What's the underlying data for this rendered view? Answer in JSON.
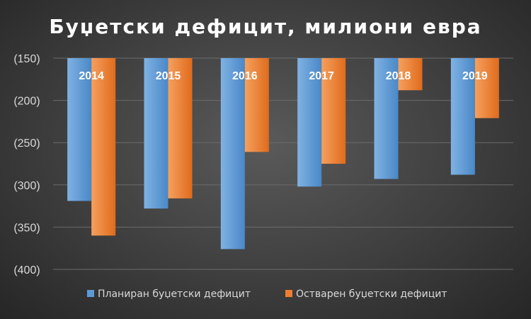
{
  "chart_data": {
    "type": "bar",
    "title": "Буџетски дефицит, милиони евра",
    "categories": [
      "2014",
      "2015",
      "2016",
      "2017",
      "2018",
      "2019"
    ],
    "series": [
      {
        "name": "Планиран буџетски дефицит",
        "values": [
          -319,
          -328,
          -376,
          -302,
          -293,
          -288
        ],
        "color": "#5b9bd5"
      },
      {
        "name": "Остварен буџетски дефицит",
        "values": [
          -360,
          -316,
          -261,
          -275,
          -188,
          -221
        ],
        "color": "#ed7d31"
      }
    ],
    "ylim": [
      -400,
      -150
    ],
    "yticks": [
      -150,
      -200,
      -250,
      -300,
      -350,
      -400
    ],
    "ytick_labels": [
      "(150)",
      "(200)",
      "(250)",
      "(300)",
      "(350)",
      "(400)"
    ],
    "category_labels_position": "top-inside",
    "grid": true,
    "legend": "bottom"
  }
}
